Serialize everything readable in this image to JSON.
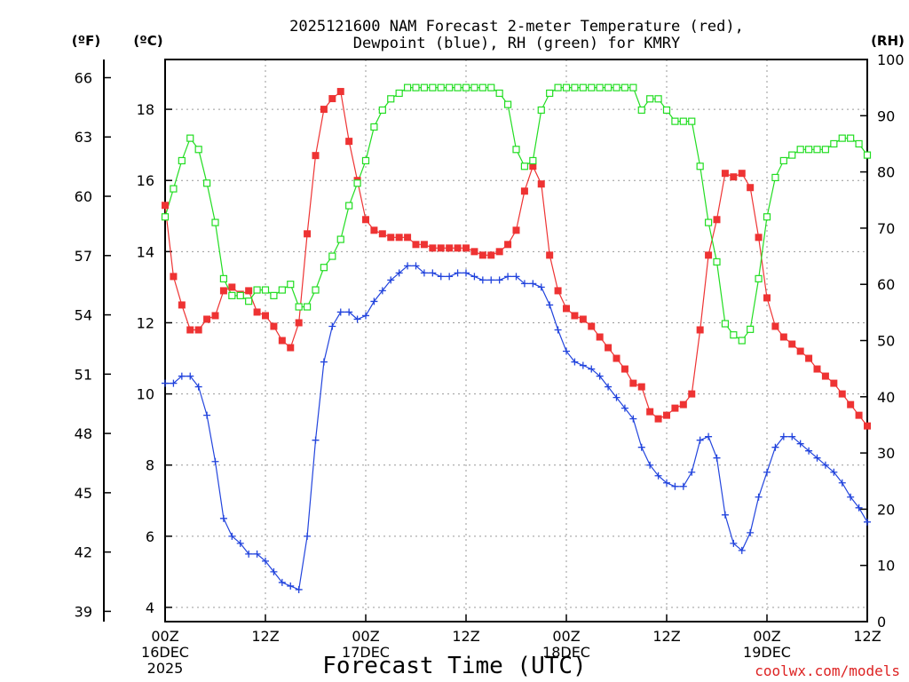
{
  "chart_data": {
    "type": "line",
    "title_line1": "2025121600 NAM Forecast 2-meter Temperature (red),",
    "title_line2": "Dewpoint (blue), RH (green) for KMRY",
    "xlabel": "Forecast Time (UTC)",
    "credit": "coolwx.com/models",
    "left_unit_f": "(ºF)",
    "left_unit_c": "(ºC)",
    "right_unit": "(RH)",
    "x_range_hours": [
      0,
      84
    ],
    "x_ticks": [
      {
        "h": 0,
        "l1": "00Z",
        "l2": "16DEC",
        "l3": "2025"
      },
      {
        "h": 12,
        "l1": "12Z",
        "l2": "",
        "l3": ""
      },
      {
        "h": 24,
        "l1": "00Z",
        "l2": "17DEC",
        "l3": ""
      },
      {
        "h": 36,
        "l1": "12Z",
        "l2": "",
        "l3": ""
      },
      {
        "h": 48,
        "l1": "00Z",
        "l2": "18DEC",
        "l3": ""
      },
      {
        "h": 60,
        "l1": "12Z",
        "l2": "",
        "l3": ""
      },
      {
        "h": 72,
        "l1": "00Z",
        "l2": "19DEC",
        "l3": ""
      },
      {
        "h": 84,
        "l1": "12Z",
        "l2": "",
        "l3": ""
      }
    ],
    "c_range": [
      3.6,
      19.4
    ],
    "c_ticks": [
      4,
      6,
      8,
      10,
      12,
      14,
      16,
      18
    ],
    "f_ticks": [
      39,
      42,
      45,
      48,
      51,
      54,
      57,
      60,
      63,
      66
    ],
    "rh_range": [
      0,
      100
    ],
    "rh_ticks": [
      0,
      10,
      20,
      30,
      40,
      50,
      60,
      70,
      80,
      90,
      100
    ],
    "series": [
      {
        "name": "2-meter Temperature",
        "color": "#ee3333",
        "marker": "filled-square",
        "axis": "c",
        "values": [
          15.3,
          13.3,
          12.5,
          11.8,
          11.8,
          12.1,
          12.2,
          12.9,
          13.0,
          12.8,
          12.9,
          12.3,
          12.2,
          11.9,
          11.5,
          11.3,
          12.0,
          14.5,
          16.7,
          18.0,
          18.3,
          18.5,
          17.1,
          16.0,
          14.9,
          14.6,
          14.5,
          14.4,
          14.4,
          14.4,
          14.2,
          14.2,
          14.1,
          14.1,
          14.1,
          14.1,
          14.1,
          14.0,
          13.9,
          13.9,
          14.0,
          14.2,
          14.6,
          15.7,
          16.4,
          15.9,
          13.9,
          12.9,
          12.4,
          12.2,
          12.1,
          11.9,
          11.6,
          11.3,
          11.0,
          10.7,
          10.3,
          10.2,
          9.5,
          9.3,
          9.4,
          9.6,
          9.7,
          10.0,
          11.8,
          13.9,
          14.9,
          16.2,
          16.1,
          16.2,
          15.8,
          14.4,
          12.7,
          11.9,
          11.6,
          11.4,
          11.2,
          11.0,
          10.7,
          10.5,
          10.3,
          10.0,
          9.7,
          9.4,
          9.1
        ]
      },
      {
        "name": "Dewpoint",
        "color": "#2244dd",
        "marker": "plus",
        "axis": "c",
        "values": [
          10.3,
          10.3,
          10.5,
          10.5,
          10.2,
          9.4,
          8.1,
          6.5,
          6.0,
          5.8,
          5.5,
          5.5,
          5.3,
          5.0,
          4.7,
          4.6,
          4.5,
          6.0,
          8.7,
          10.9,
          11.9,
          12.3,
          12.3,
          12.1,
          12.2,
          12.6,
          12.9,
          13.2,
          13.4,
          13.6,
          13.6,
          13.4,
          13.4,
          13.3,
          13.3,
          13.4,
          13.4,
          13.3,
          13.2,
          13.2,
          13.2,
          13.3,
          13.3,
          13.1,
          13.1,
          13.0,
          12.5,
          11.8,
          11.2,
          10.9,
          10.8,
          10.7,
          10.5,
          10.2,
          9.9,
          9.6,
          9.3,
          8.5,
          8.0,
          7.7,
          7.5,
          7.4,
          7.4,
          7.8,
          8.7,
          8.8,
          8.2,
          6.6,
          5.8,
          5.6,
          6.1,
          7.1,
          7.8,
          8.5,
          8.8,
          8.8,
          8.6,
          8.4,
          8.2,
          8.0,
          7.8,
          7.5,
          7.1,
          6.8,
          6.4
        ]
      },
      {
        "name": "RH",
        "color": "#22dd22",
        "marker": "open-square",
        "axis": "rh",
        "values": [
          72,
          77,
          82,
          86,
          84,
          78,
          71,
          61,
          58,
          58,
          57,
          59,
          59,
          58,
          59,
          60,
          56,
          56,
          59,
          63,
          65,
          68,
          74,
          78,
          82,
          88,
          91,
          93,
          94,
          95,
          95,
          95,
          95,
          95,
          95,
          95,
          95,
          95,
          95,
          95,
          94,
          92,
          84,
          81,
          82,
          91,
          94,
          95,
          95,
          95,
          95,
          95,
          95,
          95,
          95,
          95,
          95,
          91,
          93,
          93,
          91,
          89,
          89,
          89,
          81,
          71,
          64,
          53,
          51,
          50,
          52,
          61,
          72,
          79,
          82,
          83,
          84,
          84,
          84,
          84,
          85,
          86,
          86,
          85,
          83
        ]
      }
    ]
  }
}
